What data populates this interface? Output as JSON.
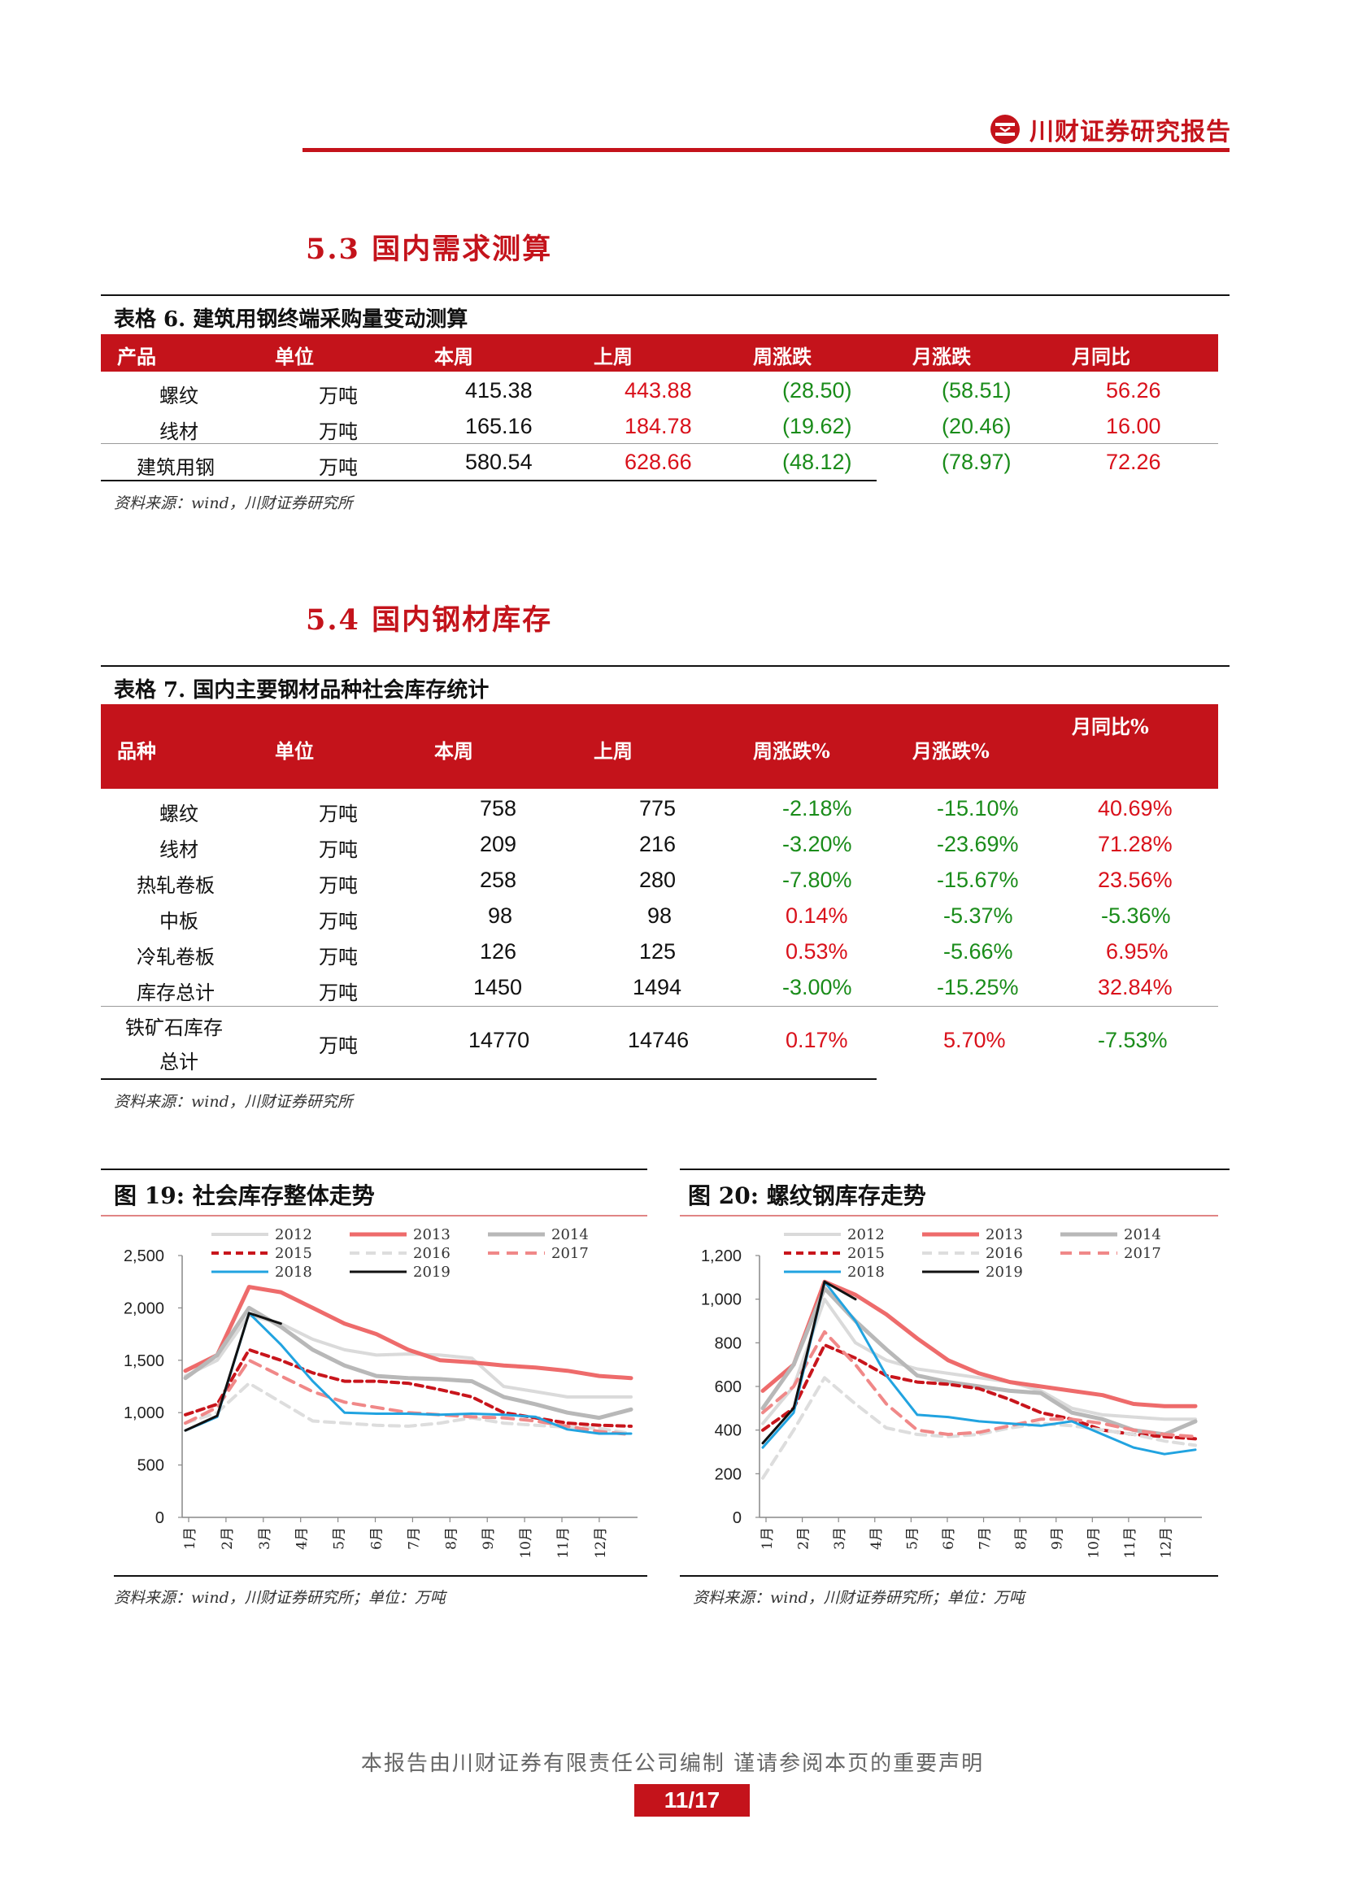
{
  "header": {
    "brand": "川财证券研究报告"
  },
  "section53": {
    "title": "5.3 国内需求测算"
  },
  "table6": {
    "caption": "表格 6.  建筑用钢终端采购量变动测算",
    "headers": [
      "产品",
      "单位",
      "本周",
      "上周",
      "周涨跌",
      "月涨跌",
      "月同比"
    ],
    "rows": [
      [
        "螺纹",
        "万吨",
        "415.38",
        "443.88",
        "(28.50)",
        "(58.51)",
        "56.26"
      ],
      [
        "线材",
        "万吨",
        "165.16",
        "184.78",
        "(19.62)",
        "(20.46)",
        "16.00"
      ],
      [
        "建筑用钢",
        "万吨",
        "580.54",
        "628.66",
        "(48.12)",
        "(78.97)",
        "72.26"
      ]
    ],
    "source": "资料来源：wind，川财证券研究所"
  },
  "section54": {
    "title": "5.4 国内钢材库存"
  },
  "table7": {
    "caption": "表格 7.  国内主要钢材品种社会库存统计",
    "headers": [
      "品种",
      "单位",
      "本周",
      "上周",
      "周涨跌%",
      "月涨跌%",
      "月同比%"
    ],
    "rows": [
      [
        "螺纹",
        "万吨",
        "758",
        "775",
        "-2.18%",
        "-15.10%",
        "40.69%"
      ],
      [
        "线材",
        "万吨",
        "209",
        "216",
        "-3.20%",
        "-23.69%",
        "71.28%"
      ],
      [
        "热轧卷板",
        "万吨",
        "258",
        "280",
        "-7.80%",
        "-15.67%",
        "23.56%"
      ],
      [
        "中板",
        "万吨",
        "98",
        "98",
        "0.14%",
        "-5.37%",
        "-5.36%"
      ],
      [
        "冷轧卷板",
        "万吨",
        "126",
        "125",
        "0.53%",
        "-5.66%",
        "6.95%"
      ],
      [
        "库存总计",
        "万吨",
        "1450",
        "1494",
        "-3.00%",
        "-15.25%",
        "32.84%"
      ]
    ],
    "last_row": {
      "name_l1": "铁矿石库存",
      "name_l2": "总计",
      "unit": "万吨",
      "cur": "14770",
      "prev": "14746",
      "wk": "0.17%",
      "mo": "5.70%",
      "yoy": "-7.53%"
    },
    "source": "资料来源：wind，川财证券研究所"
  },
  "fig19": {
    "caption": "图  19:  社会库存整体走势",
    "source": "资料来源：wind，川财证券研究所；单位：万吨"
  },
  "fig20": {
    "caption": "图  20:  螺纹钢库存走势",
    "source": "资料来源：wind，川财证券研究所；单位：万吨"
  },
  "chart_data": [
    {
      "type": "line",
      "title": "社会库存整体走势",
      "ylim": [
        0,
        2500
      ],
      "yticks": [
        "0",
        "500",
        "1,000",
        "1,500",
        "2,000",
        "2,500"
      ],
      "ytick_values": [
        0,
        500,
        1000,
        1500,
        2000,
        2500
      ],
      "xticks": [
        "1月",
        "2月",
        "3月",
        "4月",
        "5月",
        "6月",
        "7月",
        "8月",
        "9月",
        "10月",
        "11月",
        "12月"
      ],
      "legend": "top",
      "series": [
        {
          "name": "2012",
          "values": [
            1350,
            1500,
            1930,
            1850,
            1700,
            1600,
            1550,
            1560,
            1550,
            1520,
            1250,
            1200,
            1150,
            1150,
            1150
          ],
          "color": "#dadada",
          "width": 4,
          "dash": ""
        },
        {
          "name": "2013",
          "values": [
            1400,
            1550,
            2200,
            2150,
            2000,
            1850,
            1750,
            1600,
            1500,
            1480,
            1450,
            1430,
            1400,
            1350,
            1330
          ],
          "color": "#ee6b6b",
          "width": 5,
          "dash": ""
        },
        {
          "name": "2014",
          "values": [
            1330,
            1550,
            2000,
            1820,
            1600,
            1450,
            1350,
            1330,
            1320,
            1300,
            1150,
            1080,
            1000,
            950,
            1030
          ],
          "color": "#b8b8b8",
          "width": 5,
          "dash": ""
        },
        {
          "name": "2015",
          "values": [
            980,
            1080,
            1600,
            1500,
            1380,
            1300,
            1300,
            1280,
            1220,
            1150,
            1000,
            950,
            900,
            880,
            870
          ],
          "color": "#c8151c",
          "width": 4,
          "dash": "9,6"
        },
        {
          "name": "2016",
          "values": [
            900,
            1000,
            1280,
            1100,
            920,
            900,
            880,
            870,
            900,
            950,
            900,
            880,
            860,
            850,
            800
          ],
          "color": "#dddddd",
          "width": 4,
          "dash": "12,8"
        },
        {
          "name": "2017",
          "values": [
            900,
            1050,
            1500,
            1350,
            1200,
            1100,
            1050,
            1000,
            980,
            960,
            950,
            920,
            870,
            820,
            790
          ],
          "color": "#f08888",
          "width": 4,
          "dash": "14,9"
        },
        {
          "name": "2018",
          "values": [
            830,
            960,
            1950,
            1650,
            1300,
            1000,
            990,
            990,
            980,
            990,
            980,
            960,
            840,
            800,
            800
          ],
          "color": "#21a3e0",
          "width": 3,
          "dash": ""
        },
        {
          "name": "2019",
          "values": [
            830,
            970,
            1950,
            1850
          ],
          "color": "#111111",
          "width": 3,
          "dash": ""
        }
      ]
    },
    {
      "type": "line",
      "title": "螺纹钢库存走势",
      "ylim": [
        0,
        1200
      ],
      "yticks": [
        "0",
        "200",
        "400",
        "600",
        "800",
        "1,000",
        "1,200"
      ],
      "ytick_values": [
        0,
        200,
        400,
        600,
        800,
        1000,
        1200
      ],
      "xticks": [
        "1月",
        "2月",
        "3月",
        "4月",
        "5月",
        "6月",
        "7月",
        "8月",
        "9月",
        "10月",
        "11月",
        "12月"
      ],
      "legend": "top",
      "series": [
        {
          "name": "2012",
          "values": [
            430,
            600,
            1000,
            800,
            720,
            680,
            660,
            640,
            620,
            580,
            500,
            470,
            460,
            450,
            450
          ],
          "color": "#dadada",
          "width": 4,
          "dash": ""
        },
        {
          "name": "2013",
          "values": [
            580,
            700,
            1080,
            1020,
            930,
            820,
            720,
            660,
            620,
            600,
            580,
            560,
            520,
            510,
            510
          ],
          "color": "#ee6b6b",
          "width": 5,
          "dash": ""
        },
        {
          "name": "2014",
          "values": [
            500,
            700,
            1050,
            900,
            770,
            650,
            620,
            600,
            580,
            570,
            480,
            450,
            400,
            380,
            440
          ],
          "color": "#b8b8b8",
          "width": 5,
          "dash": ""
        },
        {
          "name": "2015",
          "values": [
            400,
            500,
            790,
            730,
            650,
            620,
            610,
            590,
            540,
            480,
            450,
            400,
            380,
            370,
            360
          ],
          "color": "#c8151c",
          "width": 4,
          "dash": "9,6"
        },
        {
          "name": "2016",
          "values": [
            180,
            400,
            640,
            520,
            410,
            380,
            370,
            380,
            410,
            430,
            420,
            400,
            380,
            350,
            330
          ],
          "color": "#dddddd",
          "width": 4,
          "dash": "12,8"
        },
        {
          "name": "2017",
          "values": [
            480,
            600,
            850,
            700,
            520,
            400,
            380,
            390,
            420,
            450,
            450,
            430,
            400,
            380,
            370
          ],
          "color": "#f08888",
          "width": 4,
          "dash": "14,9"
        },
        {
          "name": "2018",
          "values": [
            320,
            480,
            1080,
            900,
            650,
            470,
            460,
            440,
            430,
            420,
            440,
            380,
            320,
            290,
            310
          ],
          "color": "#21a3e0",
          "width": 3,
          "dash": ""
        },
        {
          "name": "2019",
          "values": [
            340,
            500,
            1080,
            1000
          ],
          "color": "#111111",
          "width": 3,
          "dash": ""
        }
      ]
    }
  ],
  "footer": {
    "text": "本报告由川财证券有限责任公司编制  谨请参阅本页的重要声明",
    "page": "11/17"
  }
}
